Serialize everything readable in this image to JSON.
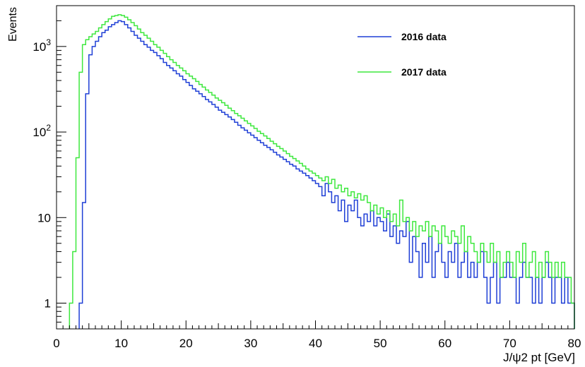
{
  "chart_data": {
    "type": "line",
    "title": "",
    "xlabel": "J/ψ2 pt [GeV]",
    "ylabel": "Events",
    "x_range": [
      0,
      80
    ],
    "y_range": [
      0.5,
      3000
    ],
    "y_scale": "log",
    "grid": false,
    "legend_position": "top-right",
    "x_ticks": [
      "0",
      "10",
      "20",
      "30",
      "40",
      "50",
      "60",
      "70",
      "80"
    ],
    "y_ticks": [
      {
        "value": 1,
        "label": "1"
      },
      {
        "value": 10,
        "label": "10"
      },
      {
        "value": 100,
        "label": "10",
        "sup": "2"
      },
      {
        "value": 1000,
        "label": "10",
        "sup": "3"
      }
    ],
    "bin_width": 0.5,
    "series": [
      {
        "name": "2016 data",
        "color": "#1f3fd6",
        "bins": [
          [
            3.5,
            1
          ],
          [
            4.0,
            15
          ],
          [
            4.5,
            280
          ],
          [
            5.0,
            800
          ],
          [
            5.5,
            1000
          ],
          [
            6.0,
            1150
          ],
          [
            6.5,
            1300
          ],
          [
            7.0,
            1450
          ],
          [
            7.5,
            1550
          ],
          [
            8.0,
            1700
          ],
          [
            8.5,
            1800
          ],
          [
            9.0,
            1900
          ],
          [
            9.5,
            2000
          ],
          [
            10.0,
            1950
          ],
          [
            10.5,
            1800
          ],
          [
            11.0,
            1650
          ],
          [
            11.5,
            1500
          ],
          [
            12.0,
            1350
          ],
          [
            12.5,
            1250
          ],
          [
            13.0,
            1150
          ],
          [
            13.5,
            1050
          ],
          [
            14.0,
            980
          ],
          [
            14.5,
            900
          ],
          [
            15.0,
            850
          ],
          [
            15.5,
            780
          ],
          [
            16.0,
            720
          ],
          [
            16.5,
            650
          ],
          [
            17.0,
            600
          ],
          [
            17.5,
            560
          ],
          [
            18.0,
            520
          ],
          [
            18.5,
            480
          ],
          [
            19.0,
            450
          ],
          [
            19.5,
            410
          ],
          [
            20.0,
            380
          ],
          [
            20.5,
            350
          ],
          [
            21.0,
            320
          ],
          [
            21.5,
            300
          ],
          [
            22.0,
            280
          ],
          [
            22.5,
            260
          ],
          [
            23.0,
            240
          ],
          [
            23.5,
            225
          ],
          [
            24.0,
            210
          ],
          [
            24.5,
            195
          ],
          [
            25.0,
            180
          ],
          [
            25.5,
            170
          ],
          [
            26.0,
            160
          ],
          [
            26.5,
            150
          ],
          [
            27.0,
            140
          ],
          [
            27.5,
            130
          ],
          [
            28.0,
            120
          ],
          [
            28.5,
            112
          ],
          [
            29.0,
            105
          ],
          [
            29.5,
            98
          ],
          [
            30.0,
            92
          ],
          [
            30.5,
            86
          ],
          [
            31.0,
            80
          ],
          [
            31.5,
            75
          ],
          [
            32.0,
            70
          ],
          [
            32.5,
            66
          ],
          [
            33.0,
            62
          ],
          [
            33.5,
            58
          ],
          [
            34.0,
            54
          ],
          [
            34.5,
            51
          ],
          [
            35.0,
            48
          ],
          [
            35.5,
            45
          ],
          [
            36.0,
            42
          ],
          [
            36.5,
            40
          ],
          [
            37.0,
            37
          ],
          [
            37.5,
            35
          ],
          [
            38.0,
            33
          ],
          [
            38.5,
            31
          ],
          [
            39.0,
            29
          ],
          [
            39.5,
            27
          ],
          [
            40.0,
            25
          ],
          [
            40.5,
            23
          ],
          [
            41.0,
            18
          ],
          [
            41.5,
            25
          ],
          [
            42.0,
            20
          ],
          [
            42.5,
            15
          ],
          [
            43.0,
            18
          ],
          [
            43.5,
            12
          ],
          [
            44.0,
            16
          ],
          [
            44.5,
            9
          ],
          [
            45.0,
            14
          ],
          [
            45.5,
            12
          ],
          [
            46.0,
            16
          ],
          [
            46.5,
            10
          ],
          [
            47.0,
            8
          ],
          [
            47.5,
            11
          ],
          [
            48.0,
            9
          ],
          [
            48.5,
            12
          ],
          [
            49.0,
            8
          ],
          [
            49.5,
            10
          ],
          [
            50.0,
            9
          ],
          [
            50.5,
            7
          ],
          [
            51.0,
            11
          ],
          [
            51.5,
            6
          ],
          [
            52.0,
            8
          ],
          [
            52.5,
            5
          ],
          [
            53.0,
            7
          ],
          [
            53.5,
            6
          ],
          [
            54.0,
            9
          ],
          [
            54.5,
            3
          ],
          [
            55.0,
            6
          ],
          [
            55.5,
            4
          ],
          [
            56.0,
            2
          ],
          [
            56.5,
            5
          ],
          [
            57.0,
            3
          ],
          [
            57.5,
            6
          ],
          [
            58.0,
            2
          ],
          [
            58.5,
            4
          ],
          [
            59.0,
            5
          ],
          [
            59.5,
            3
          ],
          [
            60.0,
            2
          ],
          [
            60.5,
            4
          ],
          [
            61.0,
            3
          ],
          [
            61.5,
            5
          ],
          [
            62.0,
            2
          ],
          [
            62.5,
            3
          ],
          [
            63.0,
            4
          ],
          [
            63.5,
            2
          ],
          [
            64.0,
            3
          ],
          [
            64.5,
            2
          ],
          [
            65.0,
            3
          ],
          [
            65.5,
            4
          ],
          [
            66.0,
            2
          ],
          [
            66.5,
            1
          ],
          [
            67.0,
            2
          ],
          [
            67.5,
            3
          ],
          [
            68.0,
            1
          ],
          [
            68.5,
            2
          ],
          [
            69.0,
            2
          ],
          [
            69.5,
            3
          ],
          [
            70.0,
            2
          ],
          [
            70.5,
            2
          ],
          [
            71.0,
            1
          ],
          [
            71.5,
            2
          ],
          [
            72.0,
            3
          ],
          [
            72.5,
            2
          ],
          [
            73.0,
            2
          ],
          [
            73.5,
            1
          ],
          [
            74.0,
            2
          ],
          [
            74.5,
            1
          ],
          [
            75.0,
            2
          ],
          [
            75.5,
            3
          ],
          [
            76.0,
            2
          ],
          [
            76.5,
            1
          ],
          [
            77.0,
            2
          ],
          [
            77.5,
            2
          ],
          [
            78.0,
            1
          ],
          [
            78.5,
            2
          ],
          [
            79.0,
            1
          ],
          [
            79.5,
            1
          ]
        ]
      },
      {
        "name": "2017 data",
        "color": "#3ee83e",
        "bins": [
          [
            2.0,
            1
          ],
          [
            2.5,
            4
          ],
          [
            3.0,
            50
          ],
          [
            3.5,
            500
          ],
          [
            4.0,
            1050
          ],
          [
            4.5,
            1200
          ],
          [
            5.0,
            1300
          ],
          [
            5.5,
            1400
          ],
          [
            6.0,
            1500
          ],
          [
            6.5,
            1650
          ],
          [
            7.0,
            1800
          ],
          [
            7.5,
            1950
          ],
          [
            8.0,
            2100
          ],
          [
            8.5,
            2250
          ],
          [
            9.0,
            2300
          ],
          [
            9.5,
            2350
          ],
          [
            10.0,
            2300
          ],
          [
            10.5,
            2200
          ],
          [
            11.0,
            2050
          ],
          [
            11.5,
            1900
          ],
          [
            12.0,
            1750
          ],
          [
            12.5,
            1600
          ],
          [
            13.0,
            1450
          ],
          [
            13.5,
            1350
          ],
          [
            14.0,
            1250
          ],
          [
            14.5,
            1150
          ],
          [
            15.0,
            1050
          ],
          [
            15.5,
            980
          ],
          [
            16.0,
            900
          ],
          [
            16.5,
            830
          ],
          [
            17.0,
            760
          ],
          [
            17.5,
            700
          ],
          [
            18.0,
            650
          ],
          [
            18.5,
            600
          ],
          [
            19.0,
            560
          ],
          [
            19.5,
            520
          ],
          [
            20.0,
            480
          ],
          [
            20.5,
            450
          ],
          [
            21.0,
            420
          ],
          [
            21.5,
            390
          ],
          [
            22.0,
            360
          ],
          [
            22.5,
            335
          ],
          [
            23.0,
            310
          ],
          [
            23.5,
            290
          ],
          [
            24.0,
            270
          ],
          [
            24.5,
            250
          ],
          [
            25.0,
            235
          ],
          [
            25.5,
            220
          ],
          [
            26.0,
            205
          ],
          [
            26.5,
            190
          ],
          [
            27.0,
            178
          ],
          [
            27.5,
            165
          ],
          [
            28.0,
            155
          ],
          [
            28.5,
            145
          ],
          [
            29.0,
            135
          ],
          [
            29.5,
            126
          ],
          [
            30.0,
            118
          ],
          [
            30.5,
            110
          ],
          [
            31.0,
            102
          ],
          [
            31.5,
            96
          ],
          [
            32.0,
            90
          ],
          [
            32.5,
            84
          ],
          [
            33.0,
            78
          ],
          [
            33.5,
            73
          ],
          [
            34.0,
            68
          ],
          [
            34.5,
            64
          ],
          [
            35.0,
            60
          ],
          [
            35.5,
            56
          ],
          [
            36.0,
            52
          ],
          [
            36.5,
            49
          ],
          [
            37.0,
            46
          ],
          [
            37.5,
            43
          ],
          [
            38.0,
            40
          ],
          [
            38.5,
            37
          ],
          [
            39.0,
            35
          ],
          [
            39.5,
            33
          ],
          [
            40.0,
            31
          ],
          [
            40.5,
            29
          ],
          [
            41.0,
            27
          ],
          [
            41.5,
            30
          ],
          [
            42.0,
            25
          ],
          [
            42.5,
            28
          ],
          [
            43.0,
            22
          ],
          [
            43.5,
            24
          ],
          [
            44.0,
            20
          ],
          [
            44.5,
            22
          ],
          [
            45.0,
            18
          ],
          [
            45.5,
            20
          ],
          [
            46.0,
            17
          ],
          [
            46.5,
            19
          ],
          [
            47.0,
            16
          ],
          [
            47.5,
            18
          ],
          [
            48.0,
            15
          ],
          [
            48.5,
            12
          ],
          [
            49.0,
            14
          ],
          [
            49.5,
            11
          ],
          [
            50.0,
            13
          ],
          [
            50.5,
            10
          ],
          [
            51.0,
            12
          ],
          [
            51.5,
            9
          ],
          [
            52.0,
            11
          ],
          [
            52.5,
            8
          ],
          [
            53.0,
            16
          ],
          [
            53.5,
            9
          ],
          [
            54.0,
            10
          ],
          [
            54.5,
            7
          ],
          [
            55.0,
            9
          ],
          [
            55.5,
            6
          ],
          [
            56.0,
            8
          ],
          [
            56.5,
            7
          ],
          [
            57.0,
            9
          ],
          [
            57.5,
            6
          ],
          [
            58.0,
            8
          ],
          [
            58.5,
            7
          ],
          [
            59.0,
            5
          ],
          [
            59.5,
            8
          ],
          [
            60.0,
            6
          ],
          [
            60.5,
            5
          ],
          [
            61.0,
            7
          ],
          [
            61.5,
            6
          ],
          [
            62.0,
            5
          ],
          [
            62.5,
            8
          ],
          [
            63.0,
            4
          ],
          [
            63.5,
            6
          ],
          [
            64.0,
            5
          ],
          [
            64.5,
            4
          ],
          [
            65.0,
            3
          ],
          [
            65.5,
            5
          ],
          [
            66.0,
            4
          ],
          [
            66.5,
            3
          ],
          [
            67.0,
            5
          ],
          [
            67.5,
            3
          ],
          [
            68.0,
            4
          ],
          [
            68.5,
            2
          ],
          [
            69.0,
            3
          ],
          [
            69.5,
            4
          ],
          [
            70.0,
            3
          ],
          [
            70.5,
            2
          ],
          [
            71.0,
            4
          ],
          [
            71.5,
            3
          ],
          [
            72.0,
            5
          ],
          [
            72.5,
            2
          ],
          [
            73.0,
            3
          ],
          [
            73.5,
            4
          ],
          [
            74.0,
            2
          ],
          [
            74.5,
            3
          ],
          [
            75.0,
            2
          ],
          [
            75.5,
            4
          ],
          [
            76.0,
            3
          ],
          [
            76.5,
            2
          ],
          [
            77.0,
            3
          ],
          [
            77.5,
            2
          ],
          [
            78.0,
            3
          ],
          [
            78.5,
            2
          ],
          [
            79.0,
            2
          ],
          [
            79.5,
            1
          ]
        ]
      }
    ]
  }
}
